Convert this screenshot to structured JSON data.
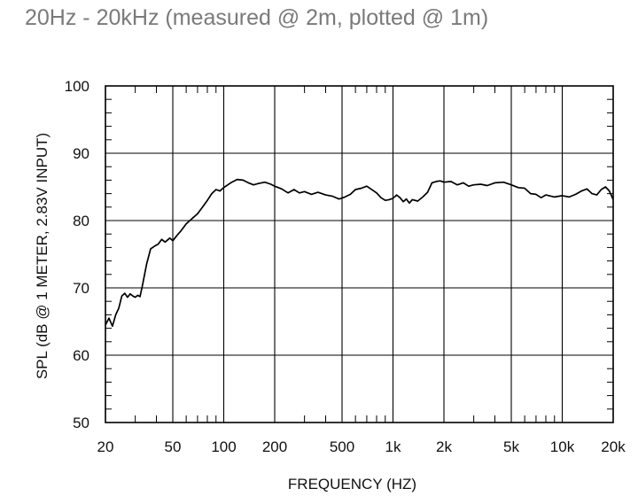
{
  "page": {
    "title": "20Hz - 20kHz (measured @ 2m, plotted @ 1m)"
  },
  "chart_data": {
    "type": "line",
    "title": "",
    "xlabel": "FREQUENCY  (HZ)",
    "ylabel": "SPL (dB @ 1 METER, 2.83V INPUT)",
    "x_scale": "log",
    "xlim": [
      20,
      20000
    ],
    "ylim": [
      50,
      100
    ],
    "grid": true,
    "x_ticks": [
      {
        "value": 20,
        "label": "20"
      },
      {
        "value": 50,
        "label": "50"
      },
      {
        "value": 100,
        "label": "100"
      },
      {
        "value": 200,
        "label": "200"
      },
      {
        "value": 500,
        "label": "500"
      },
      {
        "value": 1000,
        "label": "1k"
      },
      {
        "value": 2000,
        "label": "2k"
      },
      {
        "value": 5000,
        "label": "5k"
      },
      {
        "value": 10000,
        "label": "10k"
      },
      {
        "value": 20000,
        "label": "20k"
      }
    ],
    "y_ticks": [
      {
        "value": 50,
        "label": "50"
      },
      {
        "value": 60,
        "label": "60"
      },
      {
        "value": 70,
        "label": "70"
      },
      {
        "value": 80,
        "label": "80"
      },
      {
        "value": 90,
        "label": "90"
      },
      {
        "value": 100,
        "label": "100"
      }
    ],
    "series": [
      {
        "points": [
          [
            20,
            64.5
          ],
          [
            21,
            65.5
          ],
          [
            22,
            64.3
          ],
          [
            23,
            66
          ],
          [
            24,
            67
          ],
          [
            25,
            68.8
          ],
          [
            26,
            69.2
          ],
          [
            27,
            68.6
          ],
          [
            28,
            69.1
          ],
          [
            29,
            68.8
          ],
          [
            30,
            68.6
          ],
          [
            31,
            68.9
          ],
          [
            32,
            68.7
          ],
          [
            33,
            70.2
          ],
          [
            35,
            73.5
          ],
          [
            37,
            75.8
          ],
          [
            39,
            76.2
          ],
          [
            41,
            76.5
          ],
          [
            43,
            77.2
          ],
          [
            45,
            76.8
          ],
          [
            48,
            77.4
          ],
          [
            50,
            77.0
          ],
          [
            53,
            77.8
          ],
          [
            56,
            78.5
          ],
          [
            60,
            79.5
          ],
          [
            65,
            80.3
          ],
          [
            70,
            81.0
          ],
          [
            75,
            82.0
          ],
          [
            80,
            83.0
          ],
          [
            85,
            84.0
          ],
          [
            90,
            84.6
          ],
          [
            95,
            84.4
          ],
          [
            100,
            84.9
          ],
          [
            110,
            85.6
          ],
          [
            120,
            86.1
          ],
          [
            130,
            86.0
          ],
          [
            140,
            85.6
          ],
          [
            150,
            85.3
          ],
          [
            160,
            85.5
          ],
          [
            175,
            85.7
          ],
          [
            190,
            85.4
          ],
          [
            200,
            85.1
          ],
          [
            220,
            84.7
          ],
          [
            240,
            84.1
          ],
          [
            260,
            84.6
          ],
          [
            280,
            84.1
          ],
          [
            300,
            84.3
          ],
          [
            330,
            83.9
          ],
          [
            360,
            84.2
          ],
          [
            400,
            83.8
          ],
          [
            440,
            83.6
          ],
          [
            480,
            83.2
          ],
          [
            520,
            83.5
          ],
          [
            560,
            83.9
          ],
          [
            600,
            84.6
          ],
          [
            650,
            84.8
          ],
          [
            700,
            85.1
          ],
          [
            760,
            84.5
          ],
          [
            800,
            84.1
          ],
          [
            850,
            83.4
          ],
          [
            900,
            83.0
          ],
          [
            950,
            83.1
          ],
          [
            1000,
            83.3
          ],
          [
            1050,
            83.8
          ],
          [
            1100,
            83.4
          ],
          [
            1150,
            82.8
          ],
          [
            1200,
            83.2
          ],
          [
            1250,
            82.6
          ],
          [
            1300,
            83.1
          ],
          [
            1400,
            82.9
          ],
          [
            1500,
            83.5
          ],
          [
            1600,
            84.2
          ],
          [
            1700,
            85.6
          ],
          [
            1800,
            85.8
          ],
          [
            1900,
            85.9
          ],
          [
            2000,
            85.7
          ],
          [
            2200,
            85.8
          ],
          [
            2400,
            85.3
          ],
          [
            2600,
            85.6
          ],
          [
            2800,
            85.1
          ],
          [
            3000,
            85.3
          ],
          [
            3300,
            85.4
          ],
          [
            3600,
            85.2
          ],
          [
            4000,
            85.6
          ],
          [
            4500,
            85.7
          ],
          [
            5000,
            85.3
          ],
          [
            5500,
            84.9
          ],
          [
            6000,
            84.8
          ],
          [
            6500,
            84.0
          ],
          [
            7000,
            83.9
          ],
          [
            7500,
            83.4
          ],
          [
            8000,
            83.8
          ],
          [
            9000,
            83.5
          ],
          [
            10000,
            83.7
          ],
          [
            11000,
            83.5
          ],
          [
            12000,
            83.9
          ],
          [
            13000,
            84.4
          ],
          [
            14000,
            84.7
          ],
          [
            15000,
            84.0
          ],
          [
            16000,
            83.8
          ],
          [
            17000,
            84.6
          ],
          [
            18000,
            85.0
          ],
          [
            19000,
            84.4
          ],
          [
            20000,
            83.1
          ]
        ]
      }
    ]
  }
}
